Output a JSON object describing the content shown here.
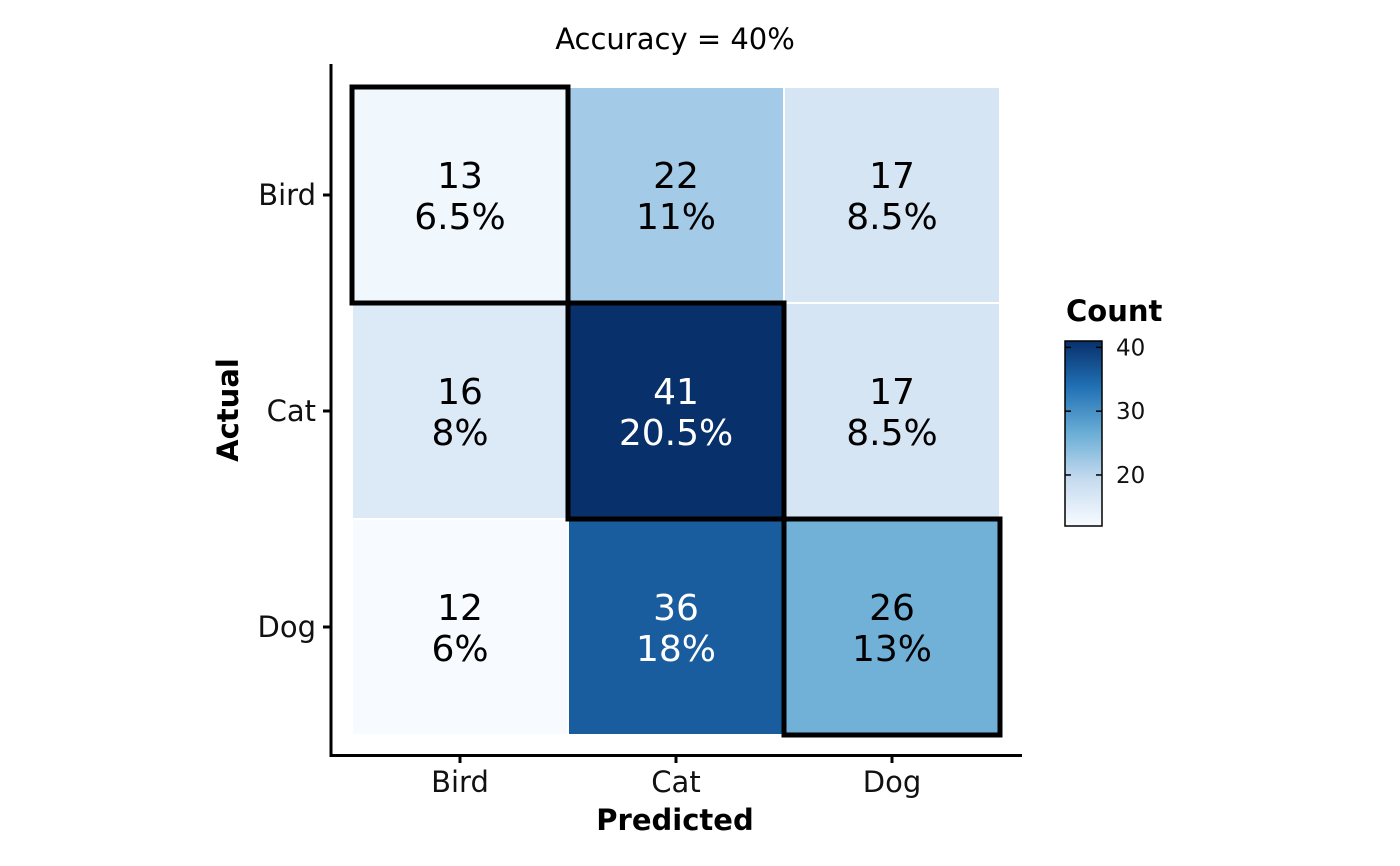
{
  "chart_data": {
    "type": "heatmap",
    "title": "Accuracy = 40%",
    "xlabel": "Predicted",
    "ylabel": "Actual",
    "x_categories": [
      "Bird",
      "Cat",
      "Dog"
    ],
    "y_categories": [
      "Bird",
      "Cat",
      "Dog"
    ],
    "cells": [
      {
        "actual": "Bird",
        "predicted": "Bird",
        "count": 13,
        "percent": "6.5%"
      },
      {
        "actual": "Bird",
        "predicted": "Cat",
        "count": 22,
        "percent": "11%"
      },
      {
        "actual": "Bird",
        "predicted": "Dog",
        "count": 17,
        "percent": "8.5%"
      },
      {
        "actual": "Cat",
        "predicted": "Bird",
        "count": 16,
        "percent": "8%"
      },
      {
        "actual": "Cat",
        "predicted": "Cat",
        "count": 41,
        "percent": "20.5%"
      },
      {
        "actual": "Cat",
        "predicted": "Dog",
        "count": 17,
        "percent": "8.5%"
      },
      {
        "actual": "Dog",
        "predicted": "Bird",
        "count": 12,
        "percent": "6%"
      },
      {
        "actual": "Dog",
        "predicted": "Cat",
        "count": 36,
        "percent": "18%"
      },
      {
        "actual": "Dog",
        "predicted": "Dog",
        "count": 26,
        "percent": "13%"
      }
    ],
    "highlight_diagonal": true,
    "legend": {
      "title": "Count",
      "ticks": [
        20,
        30,
        40
      ],
      "range": [
        12,
        41
      ],
      "position": "right"
    },
    "colors": {
      "low": "#f7fbff",
      "mid": "#6baed6",
      "high": "#08306b"
    },
    "grid": false
  }
}
